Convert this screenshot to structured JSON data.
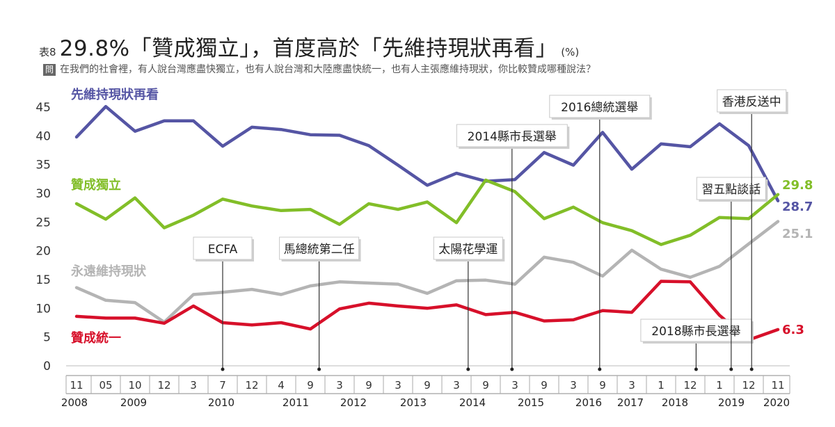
{
  "title": {
    "table_no": "表8",
    "text": "29.8%「贊成獨立」，首度高於「先維持現狀再看」",
    "unit": "(%)"
  },
  "question": {
    "badge": "問",
    "text": "在我們的社會裡，有人說台灣應盡快獨立，也有人說台灣和大陸應盡快統一，也有人主張應維持現狀，你比較贊成哪種說法？"
  },
  "colors": {
    "status_quo_later": "#5555a4",
    "independence": "#82be28",
    "status_quo_forever": "#b4b4b4",
    "unification": "#d7102a",
    "event_line": "#333333",
    "axis": "#999999"
  },
  "chart_data": {
    "type": "line",
    "ylim": [
      0,
      45
    ],
    "yticks": [
      0,
      5,
      10,
      15,
      20,
      25,
      30,
      35,
      40,
      45
    ],
    "x_month_labels": [
      "11",
      "05",
      "10",
      "12",
      "3",
      "7",
      "12",
      "4",
      "9",
      "3",
      "9",
      "3",
      "9",
      "3",
      "9",
      "3",
      "9",
      "3",
      "9",
      "3",
      "1",
      "12",
      "1",
      "12",
      "11"
    ],
    "x_year_labels": [
      "2008",
      "2009",
      "2010",
      "2011",
      "2012",
      "2013",
      "2014",
      "2015",
      "2016",
      "2017",
      "2018",
      "2019",
      "2020"
    ],
    "series": [
      {
        "name": "先維持現狀再看",
        "color": "#5555a4",
        "values": [
          39.8,
          45.1,
          40.8,
          42.6,
          42.6,
          38.2,
          41.5,
          41.1,
          40.2,
          40.1,
          38.3,
          34.9,
          31.4,
          33.5,
          32.1,
          32.4,
          37.1,
          34.9,
          40.6,
          34.2,
          38.6,
          38.1,
          42.1,
          38.3,
          28.7
        ]
      },
      {
        "name": "贊成獨立",
        "color": "#82be28",
        "values": [
          28.2,
          25.5,
          29.2,
          24.0,
          26.2,
          29.0,
          27.8,
          27.0,
          27.2,
          24.6,
          28.2,
          27.2,
          28.5,
          24.9,
          32.3,
          30.3,
          25.6,
          27.6,
          24.9,
          23.5,
          21.1,
          22.7,
          25.8,
          25.6,
          29.8
        ]
      },
      {
        "name": "永遠維持現狀",
        "color": "#b4b4b4",
        "values": [
          13.6,
          11.4,
          11.0,
          7.6,
          12.4,
          12.8,
          13.3,
          12.4,
          13.9,
          14.6,
          14.4,
          14.2,
          12.6,
          14.8,
          14.9,
          14.2,
          18.9,
          18.0,
          15.6,
          20.1,
          16.8,
          15.4,
          17.3,
          21.2,
          25.1
        ]
      },
      {
        "name": "贊成統一",
        "color": "#d7102a",
        "values": [
          8.6,
          8.3,
          8.3,
          7.4,
          10.4,
          7.5,
          7.1,
          7.5,
          6.4,
          9.9,
          10.9,
          10.4,
          10.0,
          10.6,
          8.9,
          9.3,
          7.8,
          8.0,
          9.6,
          9.3,
          14.7,
          14.6,
          8.8,
          4.5,
          6.3
        ]
      }
    ],
    "series_labels": [
      "先維持現狀再看",
      "贊成獨立",
      "永遠維持現狀",
      "贊成統一"
    ],
    "end_value_labels": [
      "28.7",
      "29.8",
      "25.1",
      "6.3"
    ],
    "events": [
      {
        "label": "ECFA",
        "position": 5.0
      },
      {
        "label": "馬總統第二任",
        "position": 8.3
      },
      {
        "label": "太陽花學運",
        "position": 13.4
      },
      {
        "label": "2014縣市長選舉",
        "position": 14.9
      },
      {
        "label": "2016總統選舉",
        "position": 17.9
      },
      {
        "label": "2018縣市長選舉",
        "position": 21.2
      },
      {
        "label": "習五點談話",
        "position": 22.4
      },
      {
        "label": "香港反送中",
        "position": 23.1
      }
    ]
  }
}
